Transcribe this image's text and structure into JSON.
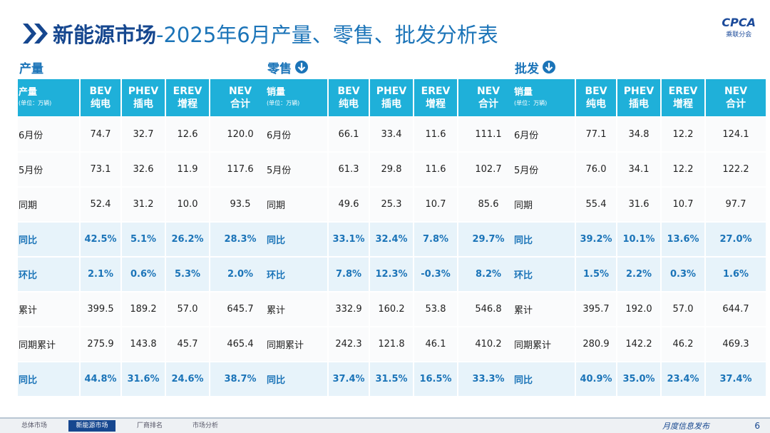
{
  "header": {
    "title_bold": "新能源市场",
    "title_rest": "-2025年6月产量、零售、批发分析表",
    "logo": "CPCA",
    "logo_sub": "乘联分会"
  },
  "tables": [
    {
      "section": "产量",
      "corner": "产量",
      "unit": "(单位：万辆)",
      "columns": [
        {
          "code": "BEV",
          "name": "纯电"
        },
        {
          "code": "PHEV",
          "name": "插电"
        },
        {
          "code": "EREV",
          "name": "增程"
        },
        {
          "code": "NEV",
          "name": "合计"
        }
      ],
      "rows": [
        {
          "label": "6月份",
          "cells": [
            "74.7",
            "32.7",
            "12.6",
            "120.0"
          ]
        },
        {
          "label": "5月份",
          "cells": [
            "73.1",
            "32.6",
            "11.9",
            "117.6"
          ]
        },
        {
          "label": "同期",
          "cells": [
            "52.4",
            "31.2",
            "10.0",
            "93.5"
          ]
        },
        {
          "label": "同比",
          "cells": [
            "42.5%",
            "5.1%",
            "26.2%",
            "28.3%"
          ]
        },
        {
          "label": "环比",
          "cells": [
            "2.1%",
            "0.6%",
            "5.3%",
            "2.0%"
          ]
        },
        {
          "label": "累计",
          "cells": [
            "399.5",
            "189.2",
            "57.0",
            "645.7"
          ]
        },
        {
          "label": "同期累计",
          "cells": [
            "275.9",
            "143.8",
            "45.7",
            "465.4"
          ]
        },
        {
          "label": "同比",
          "cells": [
            "44.8%",
            "31.6%",
            "24.6%",
            "38.7%"
          ]
        }
      ]
    },
    {
      "section": "零售",
      "corner": "销量",
      "unit": "(单位：万辆)",
      "columns": [
        {
          "code": "BEV",
          "name": "纯电"
        },
        {
          "code": "PHEV",
          "name": "插电"
        },
        {
          "code": "EREV",
          "name": "增程"
        },
        {
          "code": "NEV",
          "name": "合计"
        }
      ],
      "rows": [
        {
          "label": "6月份",
          "cells": [
            "66.1",
            "33.4",
            "11.6",
            "111.1"
          ]
        },
        {
          "label": "5月份",
          "cells": [
            "61.3",
            "29.8",
            "11.6",
            "102.7"
          ]
        },
        {
          "label": "同期",
          "cells": [
            "49.6",
            "25.3",
            "10.7",
            "85.6"
          ]
        },
        {
          "label": "同比",
          "cells": [
            "33.1%",
            "32.4%",
            "7.8%",
            "29.7%"
          ]
        },
        {
          "label": "环比",
          "cells": [
            "7.8%",
            "12.3%",
            "-0.3%",
            "8.2%"
          ]
        },
        {
          "label": "累计",
          "cells": [
            "332.9",
            "160.2",
            "53.8",
            "546.8"
          ]
        },
        {
          "label": "同期累计",
          "cells": [
            "242.3",
            "121.8",
            "46.1",
            "410.2"
          ]
        },
        {
          "label": "同比",
          "cells": [
            "37.4%",
            "31.5%",
            "16.5%",
            "33.3%"
          ]
        }
      ]
    },
    {
      "section": "批发",
      "corner": "销量",
      "unit": "(单位：万辆)",
      "columns": [
        {
          "code": "BEV",
          "name": "纯电"
        },
        {
          "code": "PHEV",
          "name": "插电"
        },
        {
          "code": "EREV",
          "name": "增程"
        },
        {
          "code": "NEV",
          "name": "合计"
        }
      ],
      "rows": [
        {
          "label": "6月份",
          "cells": [
            "77.1",
            "34.8",
            "12.2",
            "124.1"
          ]
        },
        {
          "label": "5月份",
          "cells": [
            "76.0",
            "34.1",
            "12.2",
            "122.2"
          ]
        },
        {
          "label": "同期",
          "cells": [
            "55.4",
            "31.6",
            "10.7",
            "97.7"
          ]
        },
        {
          "label": "同比",
          "cells": [
            "39.2%",
            "10.1%",
            "13.6%",
            "27.0%"
          ]
        },
        {
          "label": "环比",
          "cells": [
            "1.5%",
            "2.2%",
            "0.3%",
            "1.6%"
          ]
        },
        {
          "label": "累计",
          "cells": [
            "395.7",
            "192.0",
            "57.0",
            "644.7"
          ]
        },
        {
          "label": "同期累计",
          "cells": [
            "280.9",
            "142.2",
            "46.2",
            "469.3"
          ]
        },
        {
          "label": "同比",
          "cells": [
            "40.9%",
            "35.0%",
            "23.4%",
            "37.4%"
          ]
        }
      ]
    }
  ],
  "footer": {
    "tabs": [
      "总体市场",
      "新能源市场",
      "厂商排名",
      "市场分析"
    ],
    "slogan": "月度信息发布",
    "page": "6"
  }
}
